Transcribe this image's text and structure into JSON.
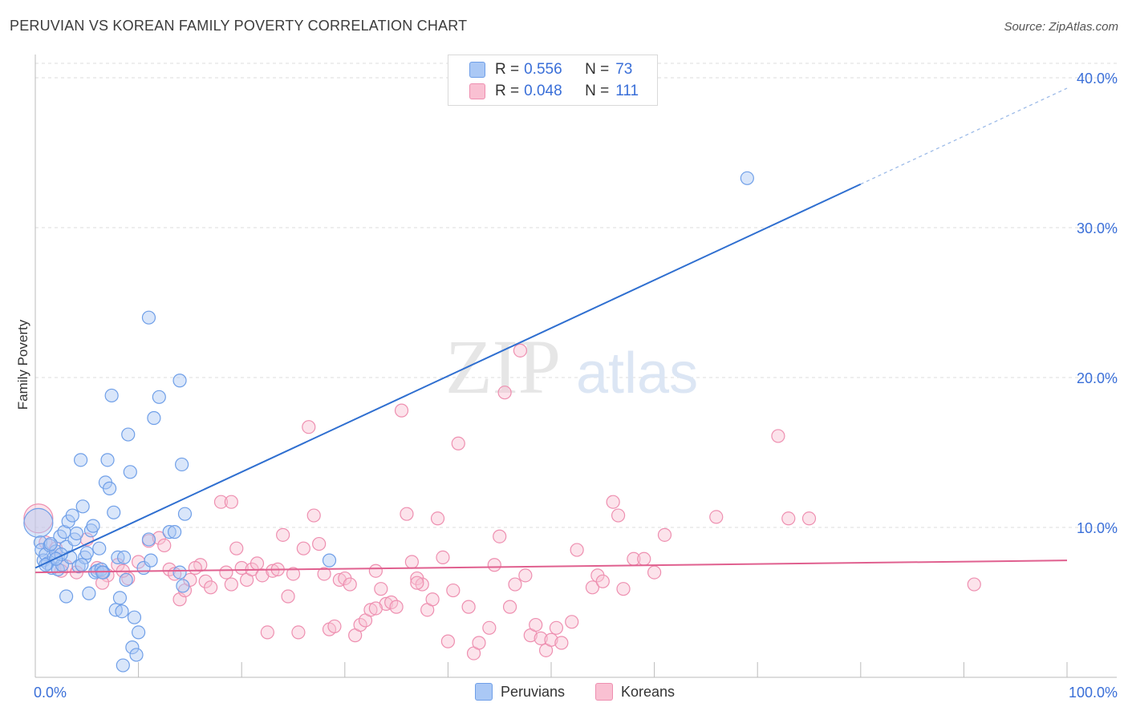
{
  "title": "PERUVIAN VS KOREAN FAMILY POVERTY CORRELATION CHART",
  "source": "Source: ZipAtlas.com",
  "watermark": {
    "zip": "ZIP",
    "atlas": "atlas"
  },
  "legend": {
    "rows": [
      {
        "r_label": "R =",
        "r_value": "0.556",
        "n_label": "N =",
        "n_value": "73",
        "color": "#aac8f5",
        "border": "#6f9fe8"
      },
      {
        "r_label": "R =",
        "r_value": "0.048",
        "n_label": "N =",
        "n_value": "111",
        "color": "#f9c0d2",
        "border": "#ee8fb0"
      }
    ]
  },
  "bottom_legend": [
    {
      "label": "Peruvians",
      "color": "#aac8f5",
      "border": "#6f9fe8"
    },
    {
      "label": "Koreans",
      "color": "#f9c0d2",
      "border": "#ee8fb0"
    }
  ],
  "chart_data": {
    "type": "scatter",
    "title": "PERUVIAN VS KOREAN FAMILY POVERTY CORRELATION CHART",
    "xlabel": "",
    "ylabel": "Family Poverty",
    "xlim": [
      0,
      100
    ],
    "ylim": [
      0,
      40
    ],
    "x_tick_labels": [
      "0.0%",
      "100.0%"
    ],
    "y_tick_labels": [
      "10.0%",
      "20.0%",
      "30.0%",
      "40.0%"
    ],
    "y_ticks": [
      10,
      20,
      30,
      40
    ],
    "x_minor_ticks": [
      0,
      10,
      20,
      30,
      40,
      50,
      60,
      70,
      80,
      90,
      100
    ],
    "grid": true,
    "series": [
      {
        "name": "Peruvians",
        "color": "#6f9fe8",
        "fill": "#aac8f5",
        "trend": {
          "x0": 0,
          "y0": 7.3,
          "x1": 80,
          "y1": 32.9,
          "dash_to_x": 100,
          "dash_to_y": 39.3,
          "color": "#2f6fd0"
        },
        "points": [
          [
            0.3,
            10.3
          ],
          [
            0.5,
            9
          ],
          [
            0.6,
            8.5
          ],
          [
            0.8,
            7.8
          ],
          [
            1,
            8.2
          ],
          [
            1.2,
            7.6
          ],
          [
            1.4,
            8.8
          ],
          [
            1.6,
            7.3
          ],
          [
            1.8,
            8
          ],
          [
            2,
            8.4
          ],
          [
            2.2,
            7.2
          ],
          [
            2.4,
            9.4
          ],
          [
            2.6,
            7.5
          ],
          [
            2.8,
            9.7
          ],
          [
            3,
            8.7
          ],
          [
            3.2,
            10.4
          ],
          [
            3.4,
            8
          ],
          [
            3.6,
            10.8
          ],
          [
            3.8,
            9.2
          ],
          [
            4,
            9.6
          ],
          [
            4.2,
            7.4
          ],
          [
            4.4,
            14.5
          ],
          [
            4.6,
            11.4
          ],
          [
            4.8,
            8
          ],
          [
            5,
            8.3
          ],
          [
            5.2,
            5.6
          ],
          [
            5.4,
            9.8
          ],
          [
            5.6,
            10.1
          ],
          [
            5.8,
            7
          ],
          [
            6,
            7.1
          ],
          [
            6.2,
            8.6
          ],
          [
            6.4,
            7.2
          ],
          [
            6.6,
            7
          ],
          [
            6.8,
            13
          ],
          [
            7,
            14.5
          ],
          [
            7.2,
            12.6
          ],
          [
            7.4,
            18.8
          ],
          [
            7.6,
            11
          ],
          [
            7.8,
            4.5
          ],
          [
            8,
            8
          ],
          [
            8.2,
            5.3
          ],
          [
            8.4,
            4.4
          ],
          [
            8.6,
            8
          ],
          [
            8.8,
            6.5
          ],
          [
            9,
            16.2
          ],
          [
            9.2,
            13.7
          ],
          [
            9.4,
            2
          ],
          [
            9.6,
            4
          ],
          [
            9.8,
            1.5
          ],
          [
            10,
            3
          ],
          [
            10.5,
            7.3
          ],
          [
            11,
            24
          ],
          [
            11.2,
            7.8
          ],
          [
            12,
            18.7
          ],
          [
            11.5,
            17.3
          ],
          [
            13,
            9.7
          ],
          [
            13.5,
            9.7
          ],
          [
            14,
            7
          ],
          [
            14.3,
            6.1
          ],
          [
            14,
            19.8
          ],
          [
            14.2,
            14.2
          ],
          [
            14.5,
            10.9
          ],
          [
            11,
            9.2
          ],
          [
            3,
            5.4
          ],
          [
            2.5,
            8.2
          ],
          [
            1.5,
            8.9
          ],
          [
            8.5,
            0.8
          ],
          [
            28.5,
            7.8
          ],
          [
            69,
            33.3
          ],
          [
            2,
            7.9
          ],
          [
            4.5,
            7.5
          ],
          [
            6.5,
            7
          ],
          [
            1,
            7.5
          ]
        ],
        "sizes_note": "one enlarged point near origin"
      },
      {
        "name": "Koreans",
        "color": "#ee8fb0",
        "fill": "#f9c0d2",
        "trend": {
          "x0": 0,
          "y0": 7.0,
          "x1": 100,
          "y1": 7.8,
          "color": "#e0608f"
        },
        "points": [
          [
            0.3,
            10.6
          ],
          [
            1,
            9
          ],
          [
            2,
            8.6
          ],
          [
            3,
            7.4
          ],
          [
            4,
            7
          ],
          [
            5,
            9.2
          ],
          [
            6,
            7.3
          ],
          [
            7,
            6.8
          ],
          [
            8,
            7.5
          ],
          [
            9,
            6.6
          ],
          [
            10,
            7.7
          ],
          [
            11,
            9.1
          ],
          [
            12,
            9.3
          ],
          [
            12.5,
            8.8
          ],
          [
            13,
            7.2
          ],
          [
            13.5,
            6.9
          ],
          [
            14,
            5.2
          ],
          [
            14.5,
            5.8
          ],
          [
            15,
            6.5
          ],
          [
            16,
            7.5
          ],
          [
            16.5,
            6.4
          ],
          [
            17,
            6
          ],
          [
            18,
            11.7
          ],
          [
            18.5,
            7
          ],
          [
            19,
            6.2
          ],
          [
            19.5,
            8.6
          ],
          [
            20,
            7.3
          ],
          [
            20.5,
            6.5
          ],
          [
            21,
            7.2
          ],
          [
            21.5,
            7.6
          ],
          [
            22,
            6.8
          ],
          [
            22.5,
            3
          ],
          [
            23,
            7.1
          ],
          [
            24,
            9.5
          ],
          [
            24.5,
            5.4
          ],
          [
            25,
            6.9
          ],
          [
            25.5,
            3
          ],
          [
            26,
            8.6
          ],
          [
            26.5,
            16.7
          ],
          [
            27,
            10.8
          ],
          [
            27.5,
            8.9
          ],
          [
            28,
            6.9
          ],
          [
            28.5,
            3.2
          ],
          [
            29,
            3.4
          ],
          [
            29.5,
            6.5
          ],
          [
            30,
            6.6
          ],
          [
            30.5,
            6.2
          ],
          [
            31,
            2.8
          ],
          [
            31.5,
            3.5
          ],
          [
            32,
            3.8
          ],
          [
            32.5,
            4.5
          ],
          [
            33,
            7.1
          ],
          [
            33.5,
            5.9
          ],
          [
            34,
            4.9
          ],
          [
            34.5,
            5
          ],
          [
            35,
            4.7
          ],
          [
            35.5,
            17.8
          ],
          [
            36,
            10.9
          ],
          [
            36.5,
            7.7
          ],
          [
            37,
            6.6
          ],
          [
            37.5,
            6.2
          ],
          [
            38,
            4.5
          ],
          [
            38.5,
            5.2
          ],
          [
            39,
            10.6
          ],
          [
            39.5,
            8
          ],
          [
            40,
            2.4
          ],
          [
            40.5,
            5.8
          ],
          [
            41,
            15.6
          ],
          [
            42,
            4.7
          ],
          [
            42.5,
            1.6
          ],
          [
            43,
            2.3
          ],
          [
            44,
            3.3
          ],
          [
            45,
            9.4
          ],
          [
            45.5,
            19
          ],
          [
            46,
            4.7
          ],
          [
            46.5,
            6.2
          ],
          [
            47,
            21.8
          ],
          [
            47.5,
            6.8
          ],
          [
            48,
            2.8
          ],
          [
            48.5,
            3.5
          ],
          [
            49,
            2.6
          ],
          [
            49.5,
            1.8
          ],
          [
            50,
            2.5
          ],
          [
            51,
            2.3
          ],
          [
            52,
            3.7
          ],
          [
            52.5,
            8.5
          ],
          [
            54,
            6
          ],
          [
            54.5,
            6.8
          ],
          [
            55,
            6.4
          ],
          [
            56,
            11.7
          ],
          [
            56.5,
            10.8
          ],
          [
            57,
            5.9
          ],
          [
            58,
            7.9
          ],
          [
            59,
            7.9
          ],
          [
            60,
            7
          ],
          [
            61,
            9.5
          ],
          [
            66,
            10.7
          ],
          [
            72,
            16.1
          ],
          [
            73,
            10.6
          ],
          [
            75,
            10.6
          ],
          [
            91,
            6.2
          ],
          [
            2.5,
            7.1
          ],
          [
            6.5,
            6.3
          ],
          [
            8.5,
            7.1
          ],
          [
            15.5,
            7.3
          ],
          [
            19,
            11.7
          ],
          [
            23.5,
            7.2
          ],
          [
            33,
            4.6
          ],
          [
            37,
            6.3
          ],
          [
            44.5,
            7.5
          ],
          [
            50.5,
            3.3
          ]
        ]
      }
    ]
  }
}
